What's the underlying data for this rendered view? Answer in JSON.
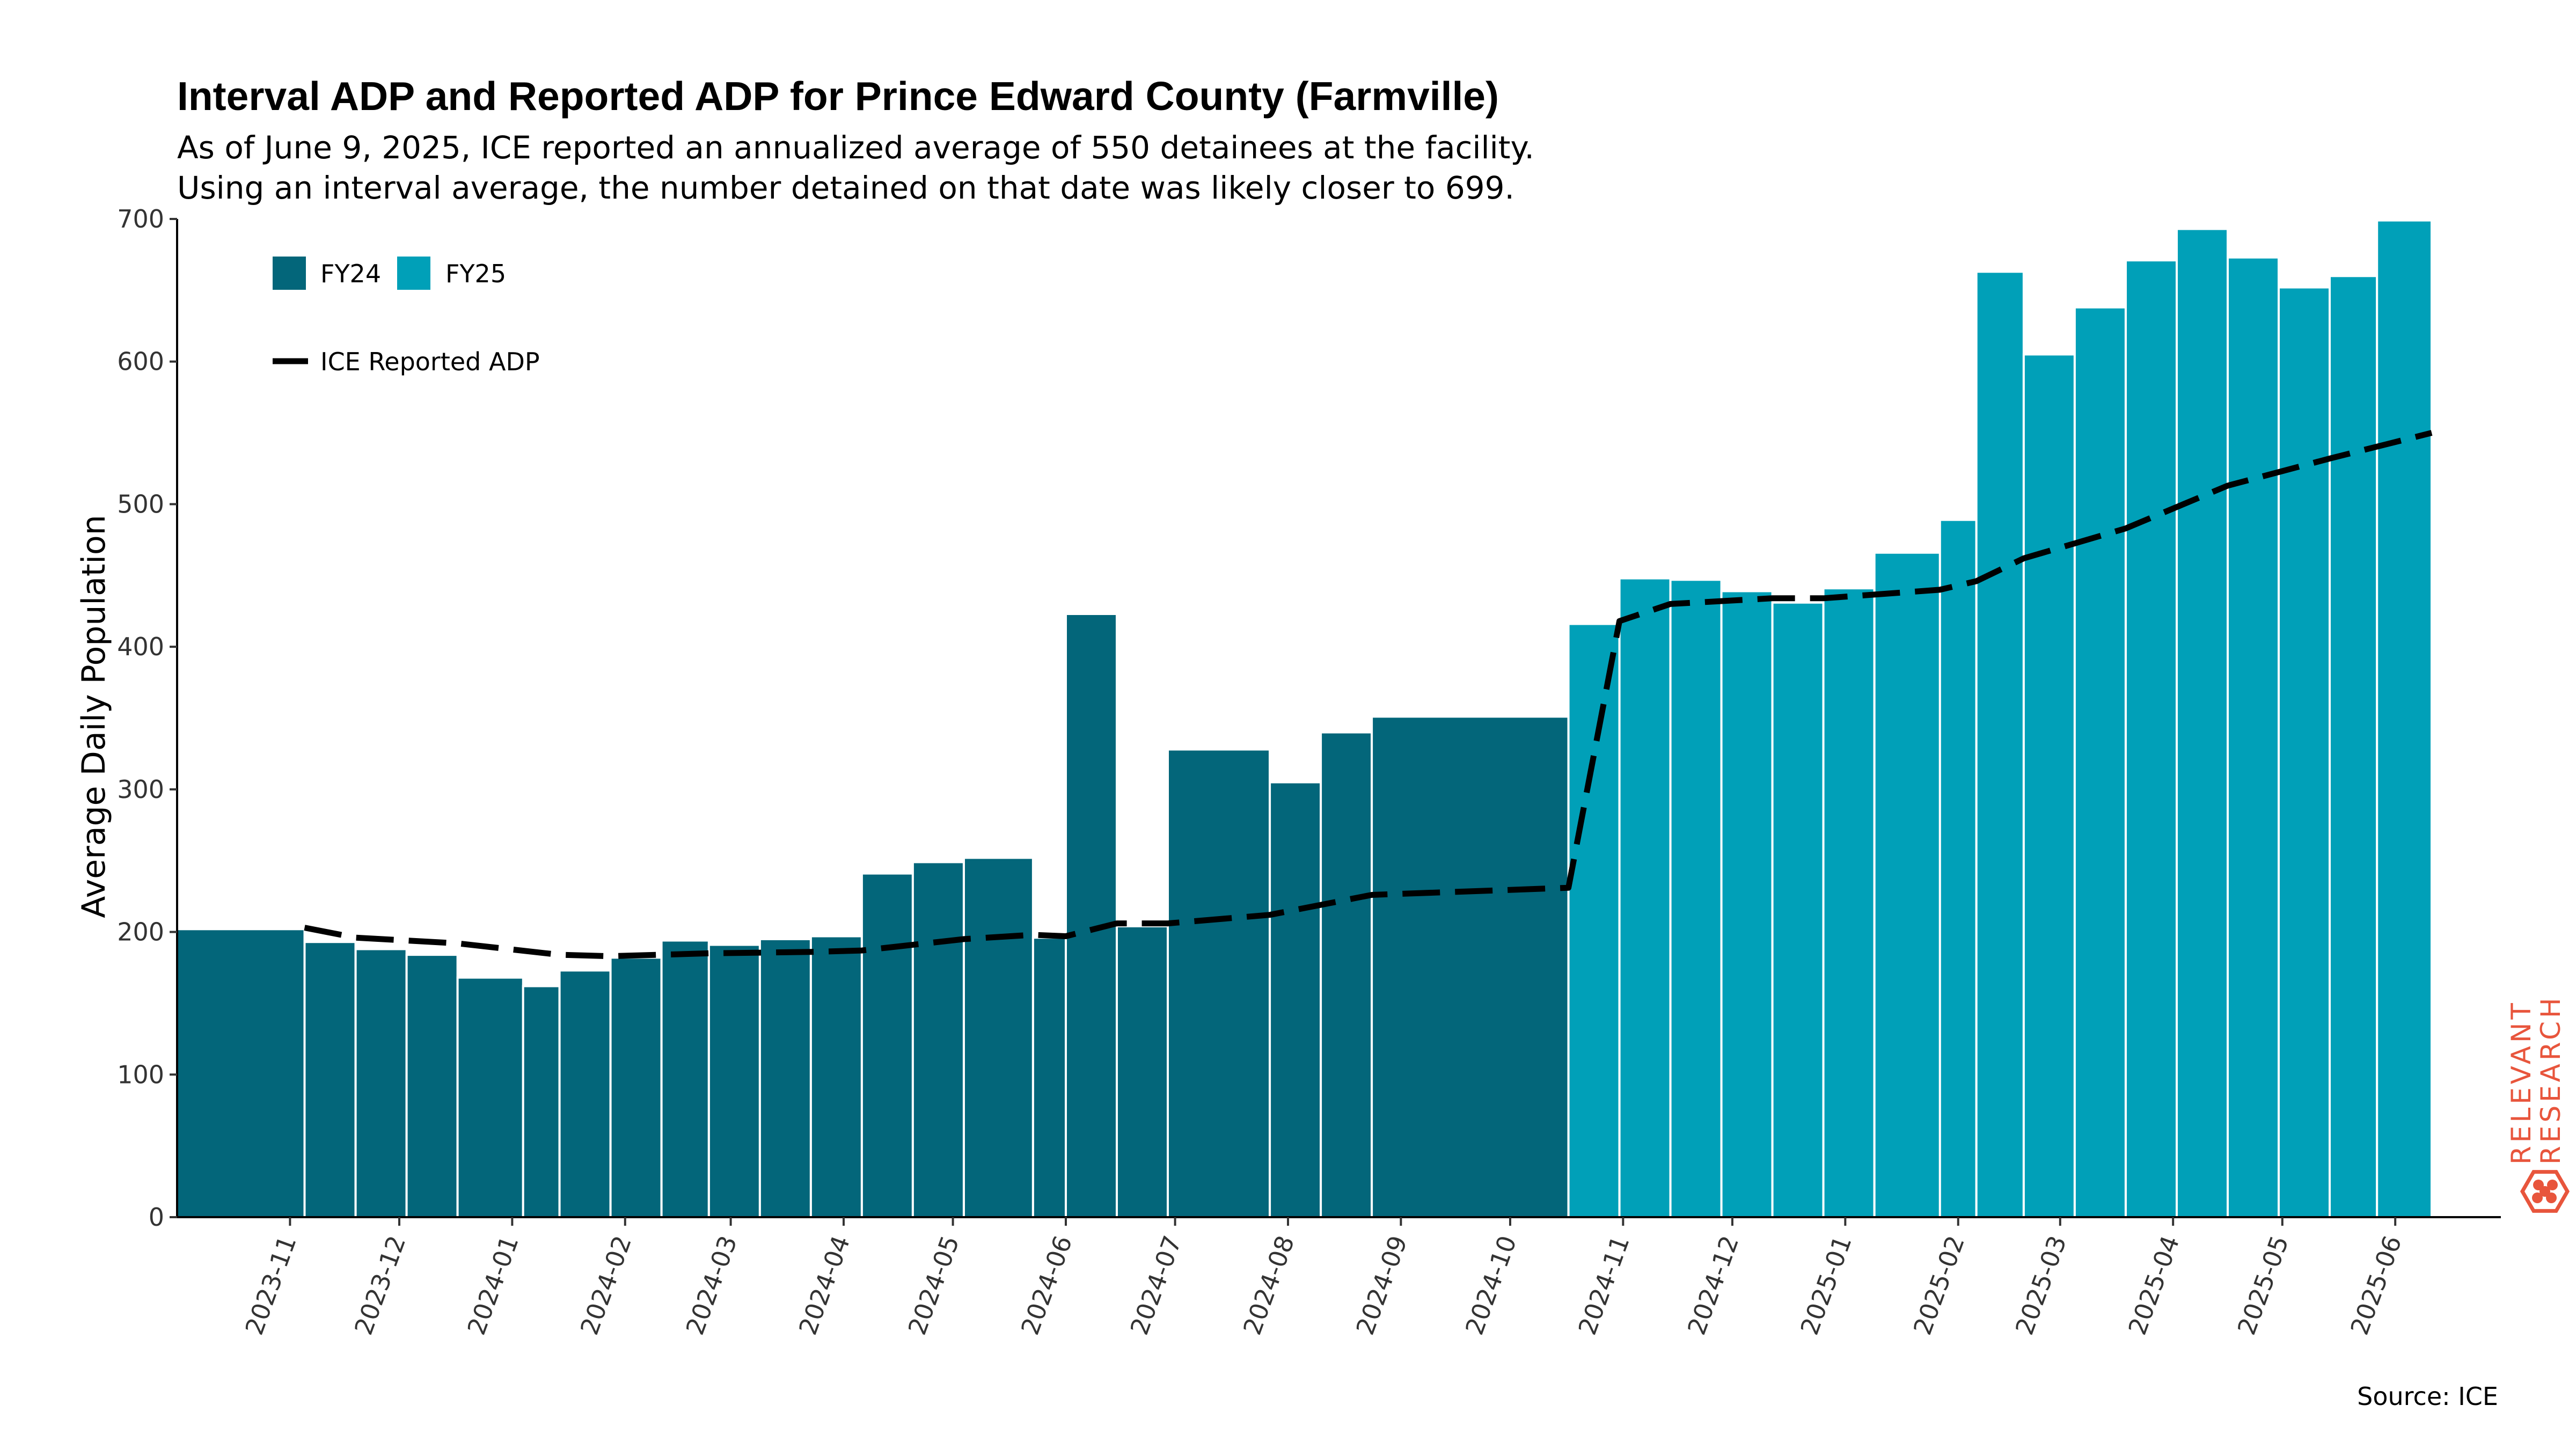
{
  "title": "Interval ADP and Reported ADP for Prince Edward County (Farmville)",
  "subtitle_lines": [
    "As of June 9, 2025, ICE reported an annualized average of 550 detainees at the facility.",
    "Using an interval average, the number detained on that date was likely closer to 699."
  ],
  "source": "Source: ICE",
  "logo_lines": [
    "RELEVANT",
    "RESEARCH"
  ],
  "colors": {
    "fy24": "#03667a",
    "fy25": "#00a0b8",
    "line": "#000000",
    "logo": "#e8553c"
  },
  "chart_data": {
    "type": "bar",
    "ylabel": "Average Daily Population",
    "xlabel": "",
    "ylim": [
      0,
      700
    ],
    "yticks": [
      0,
      100,
      200,
      300,
      400,
      500,
      600,
      700
    ],
    "x_axis": "date",
    "xlim": [
      "2023-10-01",
      "2025-06-30"
    ],
    "xticks": [
      "2023-11",
      "2023-12",
      "2024-01",
      "2024-02",
      "2024-03",
      "2024-04",
      "2024-05",
      "2024-06",
      "2024-07",
      "2024-08",
      "2024-09",
      "2024-10",
      "2024-11",
      "2024-12",
      "2025-01",
      "2025-02",
      "2025-03",
      "2025-04",
      "2025-05",
      "2025-06"
    ],
    "xtick_dates": [
      "2023-11-01",
      "2023-12-01",
      "2024-01-01",
      "2024-02-01",
      "2024-03-01",
      "2024-04-01",
      "2024-05-01",
      "2024-06-01",
      "2024-07-01",
      "2024-08-01",
      "2024-09-01",
      "2024-10-01",
      "2024-11-01",
      "2024-12-01",
      "2025-01-01",
      "2025-02-01",
      "2025-03-01",
      "2025-04-01",
      "2025-05-01",
      "2025-06-01"
    ],
    "legend": [
      "FY24",
      "FY25"
    ],
    "series": [
      {
        "name": "FY24",
        "bars": [
          {
            "start": "2023-10-01",
            "end": "2023-11-05",
            "value": 202
          },
          {
            "start": "2023-11-05",
            "end": "2023-11-19",
            "value": 193
          },
          {
            "start": "2023-11-19",
            "end": "2023-12-03",
            "value": 188
          },
          {
            "start": "2023-12-03",
            "end": "2023-12-17",
            "value": 184
          },
          {
            "start": "2023-12-17",
            "end": "2024-01-04",
            "value": 168
          },
          {
            "start": "2024-01-04",
            "end": "2024-01-14",
            "value": 162
          },
          {
            "start": "2024-01-14",
            "end": "2024-01-28",
            "value": 173
          },
          {
            "start": "2024-01-28",
            "end": "2024-02-11",
            "value": 182
          },
          {
            "start": "2024-02-11",
            "end": "2024-02-24",
            "value": 194
          },
          {
            "start": "2024-02-24",
            "end": "2024-03-09",
            "value": 191
          },
          {
            "start": "2024-03-09",
            "end": "2024-03-23",
            "value": 195
          },
          {
            "start": "2024-03-23",
            "end": "2024-04-06",
            "value": 197
          },
          {
            "start": "2024-04-06",
            "end": "2024-04-20",
            "value": 241
          },
          {
            "start": "2024-04-20",
            "end": "2024-05-04",
            "value": 249
          },
          {
            "start": "2024-05-04",
            "end": "2024-05-23",
            "value": 252
          },
          {
            "start": "2024-05-23",
            "end": "2024-06-01",
            "value": 196
          },
          {
            "start": "2024-06-01",
            "end": "2024-06-15",
            "value": 423
          },
          {
            "start": "2024-06-15",
            "end": "2024-06-29",
            "value": 204
          },
          {
            "start": "2024-06-29",
            "end": "2024-07-27",
            "value": 328
          },
          {
            "start": "2024-07-27",
            "end": "2024-08-10",
            "value": 305
          },
          {
            "start": "2024-08-10",
            "end": "2024-08-24",
            "value": 340
          },
          {
            "start": "2024-08-24",
            "end": "2024-10-17",
            "value": 351
          }
        ]
      },
      {
        "name": "FY25",
        "bars": [
          {
            "start": "2024-10-17",
            "end": "2024-10-31",
            "value": 416
          },
          {
            "start": "2024-10-31",
            "end": "2024-11-14",
            "value": 448
          },
          {
            "start": "2024-11-14",
            "end": "2024-11-28",
            "value": 447
          },
          {
            "start": "2024-11-28",
            "end": "2024-12-12",
            "value": 439
          },
          {
            "start": "2024-12-12",
            "end": "2024-12-26",
            "value": 431
          },
          {
            "start": "2024-12-26",
            "end": "2025-01-09",
            "value": 441
          },
          {
            "start": "2025-01-09",
            "end": "2025-01-27",
            "value": 466
          },
          {
            "start": "2025-01-27",
            "end": "2025-02-06",
            "value": 489
          },
          {
            "start": "2025-02-06",
            "end": "2025-02-19",
            "value": 663
          },
          {
            "start": "2025-02-19",
            "end": "2025-03-05",
            "value": 605
          },
          {
            "start": "2025-03-05",
            "end": "2025-03-19",
            "value": 638
          },
          {
            "start": "2025-03-19",
            "end": "2025-04-02",
            "value": 671
          },
          {
            "start": "2025-04-02",
            "end": "2025-04-16",
            "value": 693
          },
          {
            "start": "2025-04-16",
            "end": "2025-04-30",
            "value": 673
          },
          {
            "start": "2025-04-30",
            "end": "2025-05-14",
            "value": 652
          },
          {
            "start": "2025-05-14",
            "end": "2025-05-27",
            "value": 660
          },
          {
            "start": "2025-05-27",
            "end": "2025-06-11",
            "value": 699
          }
        ]
      },
      {
        "name": "ICE Reported ADP",
        "type": "line",
        "dash": true,
        "points": [
          {
            "x": "2023-11-05",
            "y": 203
          },
          {
            "x": "2023-11-19",
            "y": 196
          },
          {
            "x": "2023-12-17",
            "y": 192
          },
          {
            "x": "2024-01-14",
            "y": 184
          },
          {
            "x": "2024-01-28",
            "y": 183
          },
          {
            "x": "2024-02-24",
            "y": 185
          },
          {
            "x": "2024-03-23",
            "y": 186
          },
          {
            "x": "2024-04-06",
            "y": 187
          },
          {
            "x": "2024-05-04",
            "y": 195
          },
          {
            "x": "2024-05-23",
            "y": 198
          },
          {
            "x": "2024-06-01",
            "y": 197
          },
          {
            "x": "2024-06-15",
            "y": 206
          },
          {
            "x": "2024-06-29",
            "y": 206
          },
          {
            "x": "2024-07-27",
            "y": 212
          },
          {
            "x": "2024-08-24",
            "y": 226
          },
          {
            "x": "2024-10-17",
            "y": 231
          },
          {
            "x": "2024-10-31",
            "y": 418
          },
          {
            "x": "2024-11-14",
            "y": 430
          },
          {
            "x": "2024-12-12",
            "y": 434
          },
          {
            "x": "2024-12-26",
            "y": 434
          },
          {
            "x": "2025-01-27",
            "y": 440
          },
          {
            "x": "2025-02-06",
            "y": 446
          },
          {
            "x": "2025-02-19",
            "y": 462
          },
          {
            "x": "2025-03-19",
            "y": 483
          },
          {
            "x": "2025-04-16",
            "y": 513
          },
          {
            "x": "2025-05-14",
            "y": 532
          },
          {
            "x": "2025-06-11",
            "y": 550
          }
        ]
      }
    ]
  }
}
